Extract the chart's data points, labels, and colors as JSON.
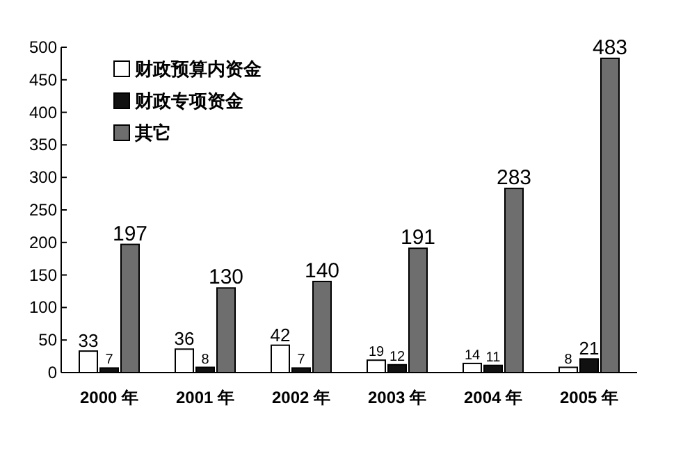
{
  "chart_data": {
    "type": "bar",
    "categories": [
      "2000 年",
      "2001 年",
      "2002 年",
      "2003 年",
      "2004 年",
      "2005 年"
    ],
    "series": [
      {
        "name": "财政预算内资金",
        "color": "#ffffff",
        "values": [
          33,
          36,
          42,
          19,
          14,
          8
        ]
      },
      {
        "name": "财政专项资金",
        "color": "#111111",
        "values": [
          7,
          8,
          7,
          12,
          11,
          21
        ]
      },
      {
        "name": "其它",
        "color": "#6e6e6e",
        "values": [
          197,
          130,
          140,
          191,
          283,
          483
        ]
      }
    ],
    "ylim": [
      0,
      500
    ],
    "yticks": [
      0,
      50,
      100,
      150,
      200,
      250,
      300,
      350,
      400,
      450,
      500
    ],
    "data_labels": true,
    "legend": "top left",
    "grid": false
  }
}
